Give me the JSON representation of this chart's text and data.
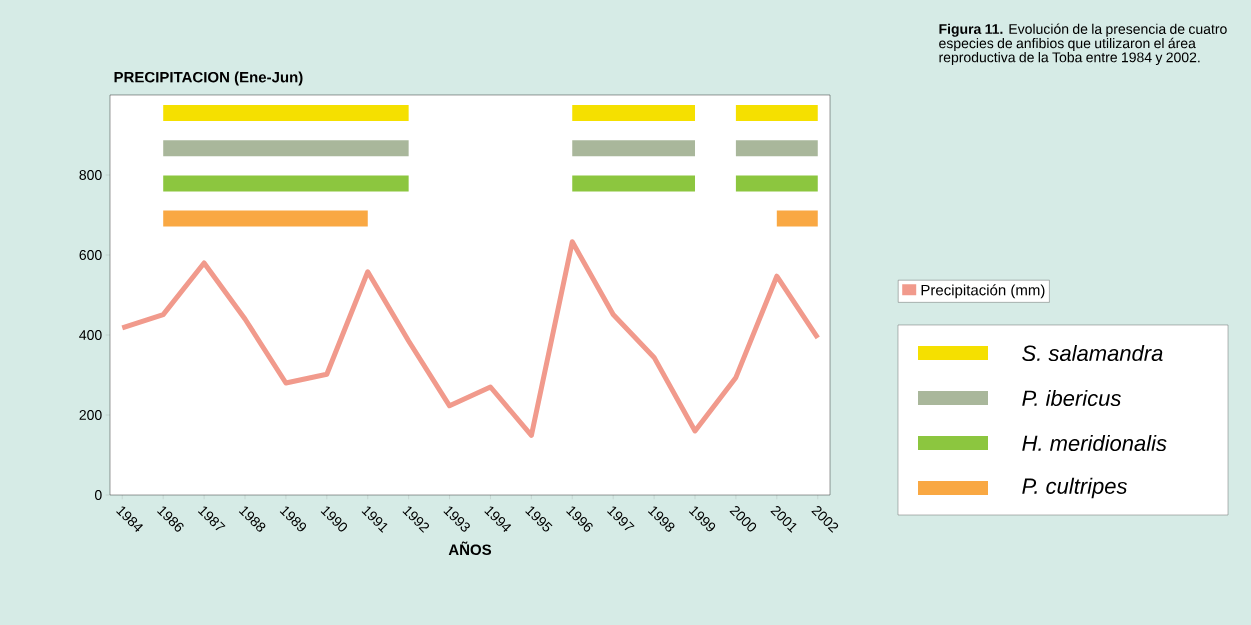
{
  "chart_data": {
    "type": "line",
    "title": "PRECIPITACION (Ene-Jun)",
    "xlabel": "AÑOS",
    "categories": [
      "1984",
      "1986",
      "1987",
      "1988",
      "1989",
      "1990",
      "1991",
      "1992",
      "1993",
      "1994",
      "1995",
      "1996",
      "1997",
      "1998",
      "1999",
      "2000",
      "2001",
      "2002"
    ],
    "series": [
      {
        "name": "Precipitación (mm)",
        "color": "#f19a8c",
        "values": [
          418,
          451,
          580,
          440,
          280,
          302,
          558,
          385,
          223,
          270,
          149,
          633,
          451,
          344,
          160,
          294,
          547,
          393
        ]
      }
    ],
    "ylim": [
      0,
      1000
    ],
    "yticks": [
      0,
      200,
      400,
      600,
      800
    ],
    "legend": "right",
    "bands": [
      {
        "axis": "x",
        "from": "1986",
        "to": "1992",
        "label": "S. salamandra",
        "color": "#f5e000"
      },
      {
        "axis": "x",
        "from": "1996",
        "to": "1999",
        "color": "#f5e000"
      },
      {
        "axis": "x",
        "from": "2000",
        "to": "2002",
        "color": "#f5e000"
      },
      {
        "axis": "x",
        "from": "1986",
        "to": "1992",
        "label": "P. ibericus",
        "color": "#a9b79b"
      },
      {
        "axis": "x",
        "from": "1996",
        "to": "1999",
        "color": "#a9b79b"
      },
      {
        "axis": "x",
        "from": "2000",
        "to": "2002",
        "color": "#a9b79b"
      },
      {
        "axis": "x",
        "from": "1986",
        "to": "1992",
        "label": "H. meridionalis",
        "color": "#8cc63f"
      },
      {
        "axis": "x",
        "from": "1996",
        "to": "1999",
        "color": "#8cc63f"
      },
      {
        "axis": "x",
        "from": "2000",
        "to": "2002",
        "color": "#8cc63f"
      },
      {
        "axis": "x",
        "from": "1986",
        "to": "1991",
        "label": "P. cultripes",
        "color": "#f9a843"
      },
      {
        "axis": "x",
        "from": "2001",
        "to": "2002",
        "color": "#f9a843"
      }
    ],
    "annotations": [
      "**Figura 11.** Evolución de la presencia de cuatro especies de anfibios que utilizaron el área reproductiva de la Toba entre 1984 y 2002."
    ]
  }
}
